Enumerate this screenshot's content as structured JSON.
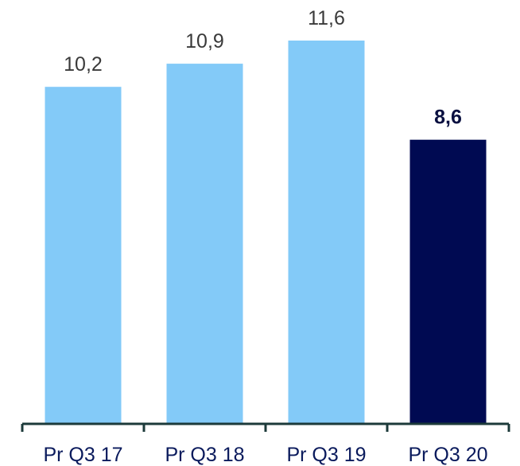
{
  "chart_data": {
    "type": "bar",
    "categories": [
      "Pr Q3 17",
      "Pr Q3 18",
      "Pr Q3 19",
      "Pr Q3 20"
    ],
    "values": [
      10.2,
      10.9,
      11.6,
      8.6
    ],
    "value_labels": [
      "10,2",
      "10,9",
      "11,6",
      "8,6"
    ],
    "highlight_index": 3,
    "title": "",
    "xlabel": "",
    "ylabel": "",
    "ylim": [
      0,
      11.6
    ],
    "grid": false,
    "legend": "none",
    "colors": {
      "bar": "#83caf8",
      "highlight_bar": "#000a52",
      "axis": "#1c3a3a",
      "label_text": "#3a3a3a",
      "highlight_label_text": "#0a1040",
      "category_text": "#0a1a5c"
    }
  }
}
